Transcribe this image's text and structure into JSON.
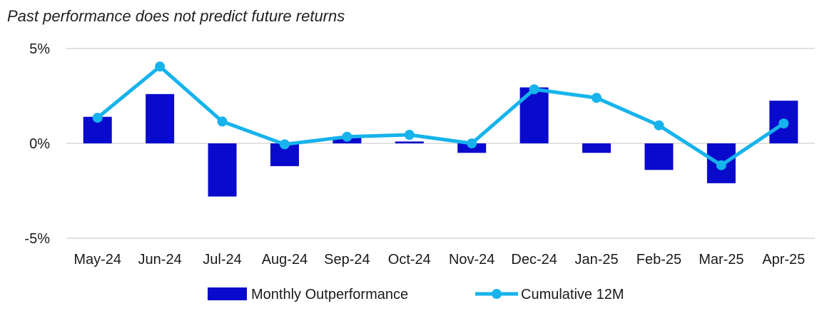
{
  "chart_data": {
    "type": "bar",
    "subtitle": "Past performance does not predict future returns",
    "categories": [
      "May-24",
      "Jun-24",
      "Jul-24",
      "Aug-24",
      "Sep-24",
      "Oct-24",
      "Nov-24",
      "Dec-24",
      "Jan-25",
      "Feb-25",
      "Mar-25",
      "Apr-25"
    ],
    "ylim": [
      -5,
      5
    ],
    "yticks": [
      -5,
      0,
      5
    ],
    "ytick_labels": [
      "-5%",
      "0%",
      "5%"
    ],
    "grid": "horizontal",
    "legend_position": "bottom",
    "series": [
      {
        "name": "Monthly Outperformance",
        "type": "bar",
        "color": "#0a0acd",
        "values": [
          1.4,
          2.6,
          -2.8,
          -1.2,
          0.35,
          0.1,
          -0.5,
          2.95,
          -0.5,
          -1.4,
          -2.1,
          2.25
        ]
      },
      {
        "name": "Cumulative 12M",
        "type": "line",
        "color": "#16b3ec",
        "values": [
          1.35,
          4.05,
          1.15,
          -0.05,
          0.35,
          0.45,
          0.0,
          2.85,
          2.4,
          0.95,
          -1.15,
          1.05
        ]
      }
    ]
  }
}
